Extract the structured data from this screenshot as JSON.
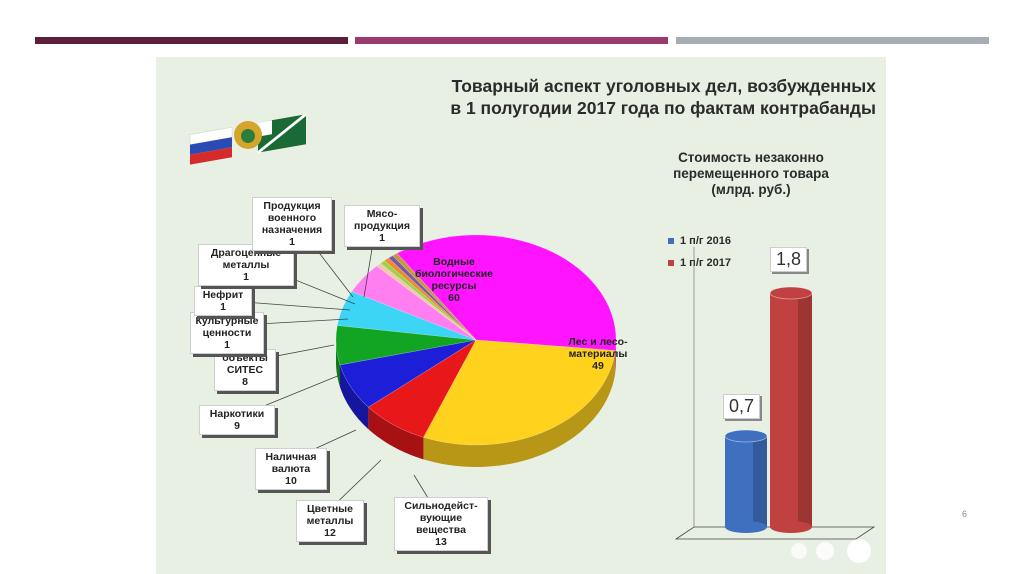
{
  "slide": {
    "title_line1": "Товарный аспект уголовных дел, возбужденных",
    "title_line2": "в 1 полугодии 2017 года по фактам контрабанды",
    "page_number": "6"
  },
  "colors": {
    "topbar_dark": "#5a1f3a",
    "topbar_mid": "#9b3a6e",
    "topbar_light": "#a7adb4",
    "bar_2016": "#3f6fbf",
    "bar_2017": "#c0413f"
  },
  "chart_data": [
    {
      "type": "pie",
      "title": "",
      "slices": [
        {
          "label": "Водные биологические ресурсы",
          "display": "Водные\nбиологические\nресурсы\n60",
          "value": 60,
          "color": "#ff14ff"
        },
        {
          "label": "Лес и лесоматериалы",
          "display": "Лес и лесо-\nматериалы\n49",
          "value": 49,
          "color": "#ffd21e"
        },
        {
          "label": "Сильнодействующие вещества",
          "display": "Сильнодейст-\nвующие\nвещества\n13",
          "value": 13,
          "color": "#e8171a"
        },
        {
          "label": "Цветные металлы",
          "display": "Цветные\nметаллы\n12",
          "value": 12,
          "color": "#1d1ed8"
        },
        {
          "label": "Наличная валюта",
          "display": "Наличная\nвалюта\n10",
          "value": 10,
          "color": "#12a524"
        },
        {
          "label": "Наркотики",
          "display": "Наркотики\n9",
          "value": 9,
          "color": "#3dd5f5"
        },
        {
          "label": "объекты СИТЕС",
          "display": "объекты\nСИТЕС\n8",
          "value": 8,
          "color": "#ff7ff0"
        },
        {
          "label": "Культурные ценности",
          "display": "Культурные\nценности\n1",
          "value": 1,
          "color": "#f2c9a8"
        },
        {
          "label": "Нефрит",
          "display": "Нефрит\n1",
          "value": 1,
          "color": "#9bd24e"
        },
        {
          "label": "Драгоценные металлы",
          "display": "Драгоценные\nметаллы\n1",
          "value": 1,
          "color": "#f08a2a"
        },
        {
          "label": "Продукция военного назначения",
          "display": "Продукция\nвоенного\nназначения\n1",
          "value": 1,
          "color": "#7a5aa8"
        },
        {
          "label": "Мясопродукция",
          "display": "Мясо-\nпродукция\n1",
          "value": 1,
          "color": "#c49a3a"
        }
      ]
    },
    {
      "type": "bar",
      "title": "Стоимость незаконно перемещенного товара (млрд. руб.)",
      "series": [
        {
          "name": "1 п/г 2016",
          "values": [
            0.7
          ],
          "display": "0,7"
        },
        {
          "name": "1 п/г 2017",
          "values": [
            1.8
          ],
          "display": "1,8"
        }
      ],
      "ylim": [
        0,
        2
      ],
      "legend": "top-left"
    }
  ]
}
